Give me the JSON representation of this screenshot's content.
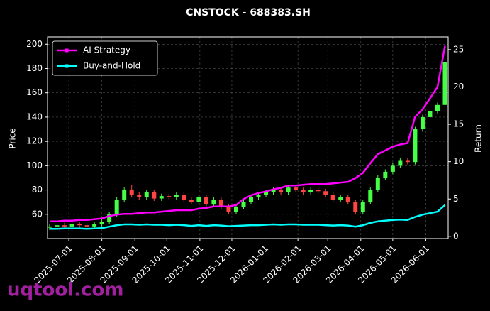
{
  "chart_data": {
    "type": "candlestick",
    "title": "CNSTOCK - 688383.SH",
    "ylabel": "Price",
    "y2label": "Return",
    "watermark": "uqtool.com",
    "x": [
      "2025-06-13",
      "2025-06-20",
      "2025-06-27",
      "2025-07-04",
      "2025-07-11",
      "2025-07-18",
      "2025-07-25",
      "2025-08-01",
      "2025-08-08",
      "2025-08-15",
      "2025-08-22",
      "2025-08-29",
      "2025-09-05",
      "2025-09-12",
      "2025-09-19",
      "2025-09-26",
      "2025-10-03",
      "2025-10-10",
      "2025-10-17",
      "2025-10-24",
      "2025-10-31",
      "2025-11-07",
      "2025-11-14",
      "2025-11-21",
      "2025-11-28",
      "2025-12-05",
      "2025-12-12",
      "2025-12-19",
      "2025-12-26",
      "2026-01-02",
      "2026-01-09",
      "2026-01-16",
      "2026-01-23",
      "2026-01-30",
      "2026-02-06",
      "2026-02-13",
      "2026-02-20",
      "2026-02-27",
      "2026-03-06",
      "2026-03-13",
      "2026-03-20",
      "2026-03-27",
      "2026-04-03",
      "2026-04-10",
      "2026-04-17",
      "2026-04-24",
      "2026-05-01",
      "2026-05-08",
      "2026-05-15",
      "2026-05-22",
      "2026-05-29",
      "2026-06-05",
      "2026-06-12",
      "2026-06-19"
    ],
    "open": [
      49,
      50,
      51,
      50,
      52,
      51,
      50,
      52,
      54,
      60,
      72,
      80,
      76,
      74,
      78,
      73,
      75,
      74,
      76,
      72,
      70,
      74,
      68,
      72,
      66,
      62,
      66,
      70,
      74,
      76,
      78,
      80,
      78,
      82,
      80,
      78,
      80,
      79,
      76,
      72,
      74,
      70,
      62,
      70,
      80,
      90,
      95,
      100,
      104,
      103,
      130,
      140,
      145,
      150
    ],
    "high": [
      52,
      53,
      53,
      54,
      54,
      53,
      54,
      56,
      62,
      74,
      82,
      84,
      78,
      80,
      80,
      77,
      77,
      78,
      78,
      74,
      76,
      76,
      74,
      74,
      68,
      68,
      72,
      76,
      78,
      80,
      82,
      82,
      84,
      84,
      82,
      82,
      82,
      81,
      78,
      76,
      76,
      72,
      72,
      82,
      92,
      97,
      102,
      106,
      106,
      132,
      142,
      147,
      152,
      197
    ],
    "low": [
      47,
      48,
      48,
      48,
      49,
      48,
      48,
      50,
      52,
      58,
      70,
      74,
      72,
      72,
      71,
      71,
      72,
      72,
      70,
      68,
      68,
      66,
      66,
      64,
      60,
      60,
      64,
      68,
      72,
      74,
      76,
      76,
      76,
      78,
      76,
      76,
      77,
      74,
      70,
      70,
      68,
      60,
      60,
      68,
      78,
      88,
      93,
      98,
      101,
      101,
      128,
      138,
      143,
      148
    ],
    "close": [
      50,
      51,
      50,
      52,
      51,
      50,
      52,
      54,
      60,
      72,
      80,
      76,
      74,
      78,
      73,
      75,
      74,
      76,
      72,
      70,
      74,
      68,
      72,
      66,
      62,
      66,
      70,
      74,
      76,
      78,
      80,
      78,
      82,
      80,
      78,
      80,
      79,
      76,
      72,
      74,
      70,
      62,
      70,
      80,
      90,
      95,
      100,
      104,
      103,
      130,
      140,
      145,
      150,
      185
    ],
    "up_color": "#44ff44",
    "down_color": "#ff4444",
    "series": [
      {
        "name": "AI Strategy",
        "color": "#ff00ff",
        "axis": "y2",
        "values": [
          2.0,
          2.0,
          2.1,
          2.1,
          2.2,
          2.2,
          2.3,
          2.4,
          2.7,
          2.9,
          3.0,
          3.0,
          3.1,
          3.2,
          3.2,
          3.3,
          3.4,
          3.5,
          3.5,
          3.5,
          3.7,
          3.8,
          4.0,
          4.0,
          4.0,
          4.2,
          5.0,
          5.5,
          5.8,
          6.0,
          6.3,
          6.5,
          6.8,
          6.8,
          6.9,
          7.0,
          7.0,
          7.0,
          7.1,
          7.2,
          7.3,
          7.8,
          8.5,
          9.8,
          11,
          11.5,
          12,
          12.3,
          12.5,
          16,
          17,
          18.5,
          20,
          25.5
        ]
      },
      {
        "name": "Buy-and-Hold",
        "color": "#00ffff",
        "axis": "y2",
        "values": [
          1.0,
          1.0,
          1.05,
          1.05,
          1.05,
          1.0,
          1.05,
          1.1,
          1.3,
          1.5,
          1.6,
          1.6,
          1.55,
          1.6,
          1.55,
          1.55,
          1.5,
          1.55,
          1.5,
          1.4,
          1.5,
          1.4,
          1.5,
          1.45,
          1.35,
          1.4,
          1.45,
          1.5,
          1.5,
          1.55,
          1.6,
          1.55,
          1.6,
          1.6,
          1.55,
          1.55,
          1.55,
          1.5,
          1.45,
          1.5,
          1.45,
          1.3,
          1.5,
          1.8,
          2.0,
          2.1,
          2.2,
          2.25,
          2.2,
          2.6,
          2.9,
          3.1,
          3.3,
          4.2
        ]
      }
    ],
    "xlim": [
      "2025-06-11",
      "2026-06-22"
    ],
    "xticks": [
      "2025-07-01",
      "2025-08-01",
      "2025-09-01",
      "2025-10-01",
      "2025-11-01",
      "2025-12-01",
      "2026-01-01",
      "2026-02-01",
      "2026-03-01",
      "2026-04-01",
      "2026-05-01",
      "2026-06-01"
    ],
    "ylim": [
      40,
      206
    ],
    "yticks": [
      60,
      80,
      100,
      120,
      140,
      160,
      180,
      200
    ],
    "y2lim": [
      -0.3,
      26.7
    ],
    "y2ticks": [
      0,
      5,
      10,
      15,
      20,
      25
    ],
    "grid": true,
    "legend": "upper left"
  }
}
